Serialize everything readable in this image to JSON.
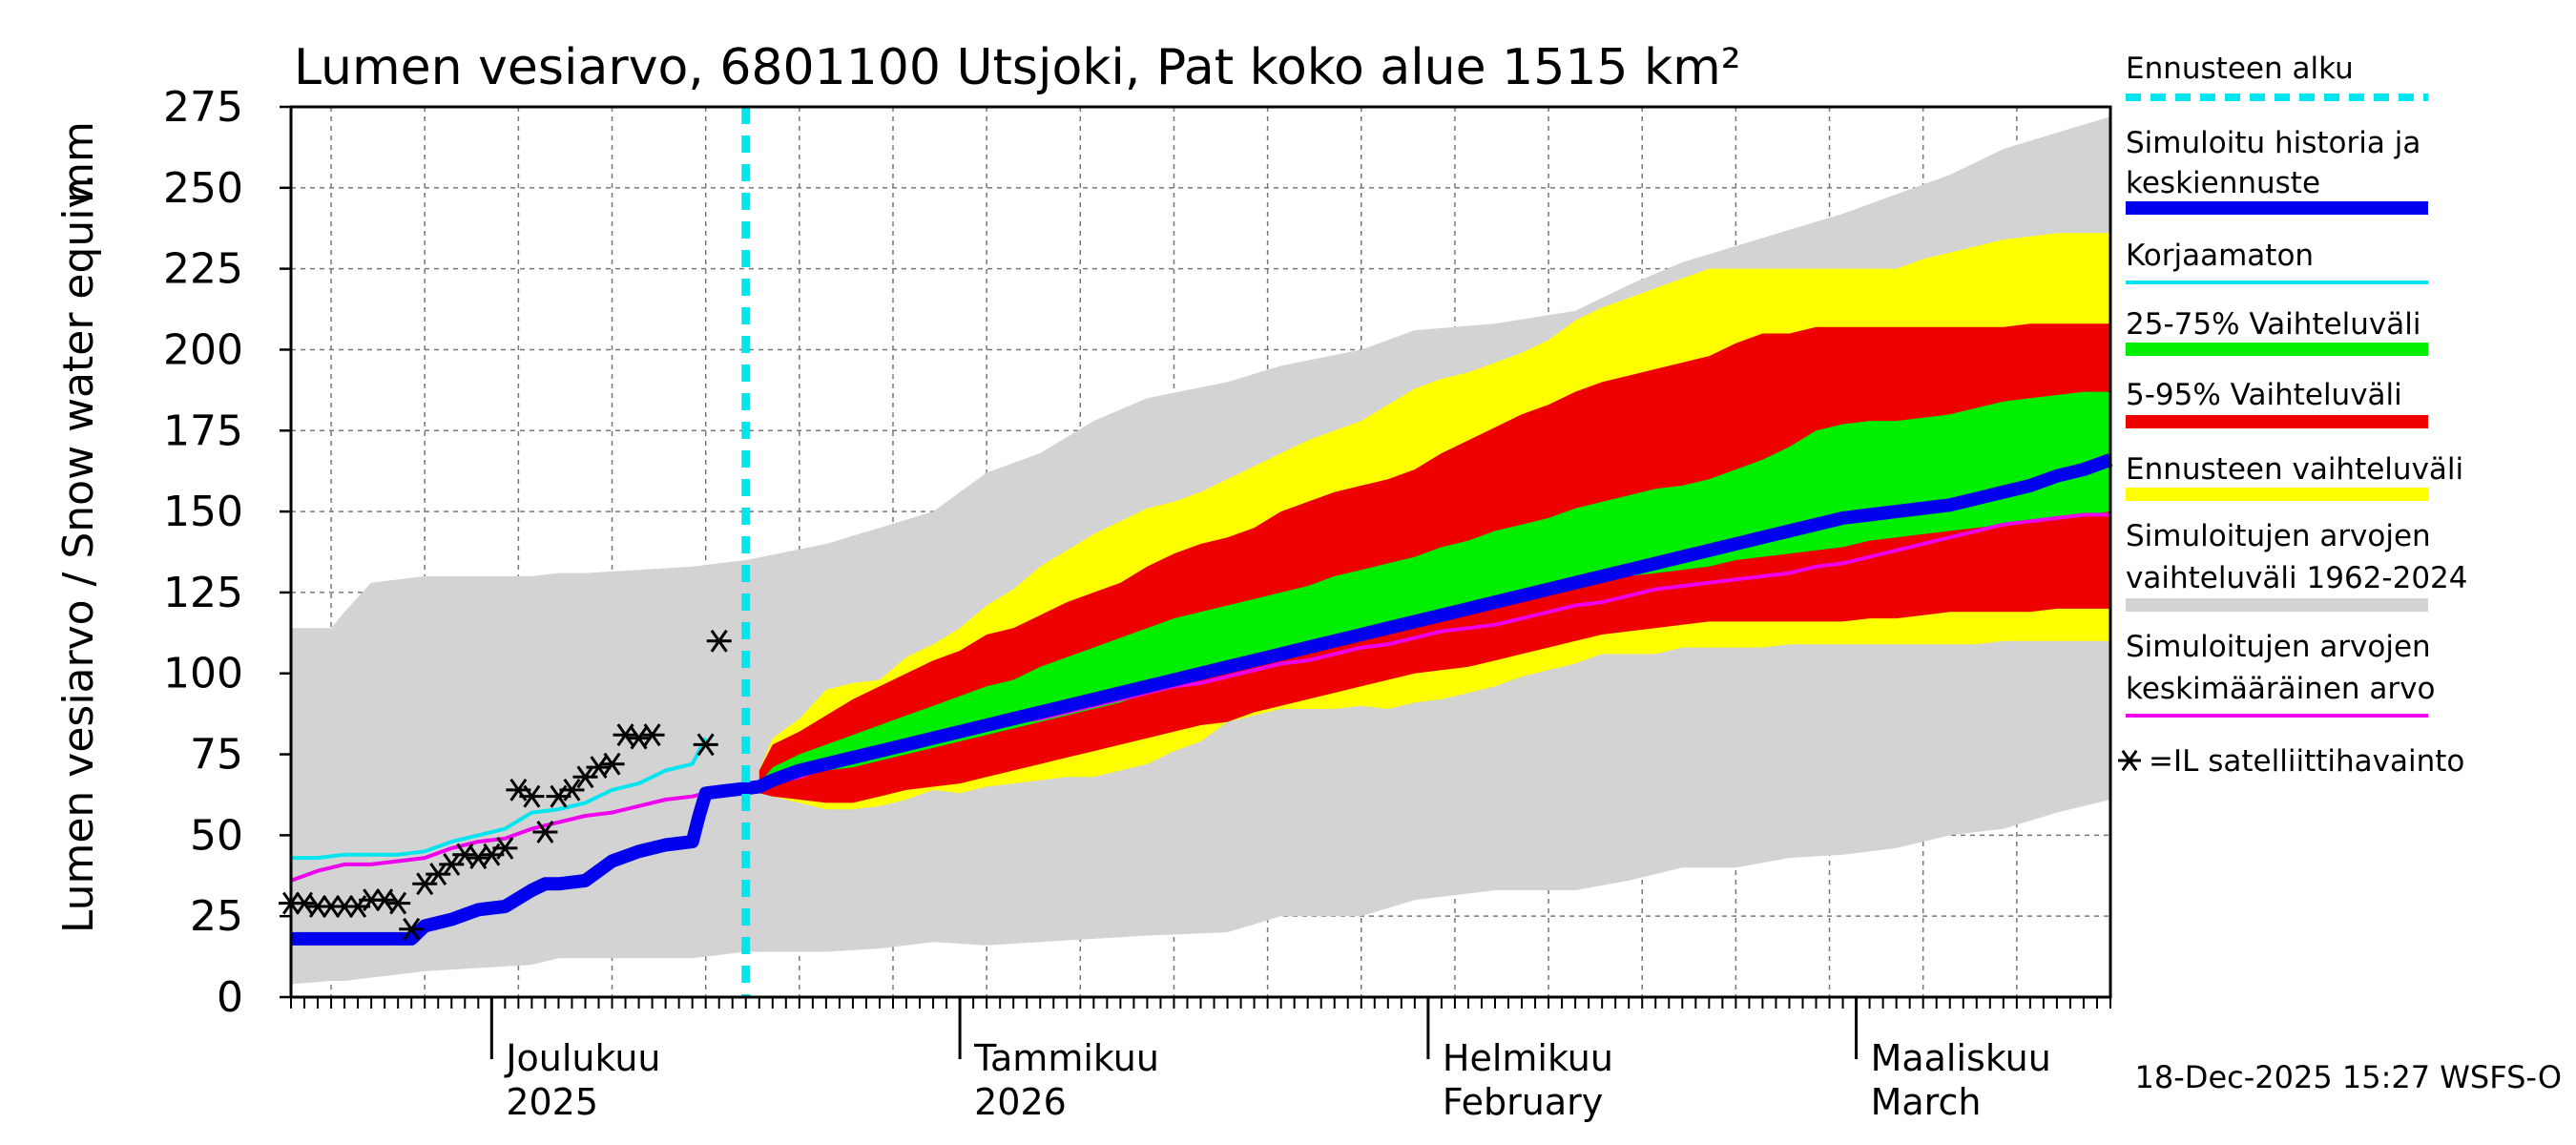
{
  "chart_data": {
    "type": "area",
    "title": "Lumen vesiarvo, 6801100 Utsjoki, Pat koko alue 1515 km²",
    "ylabel": "Lumen vesiarvo / Snow water equiv.",
    "yunit": "mm",
    "ylim": [
      0,
      275
    ],
    "yticks": [
      "0",
      "25",
      "50",
      "75",
      "100",
      "125",
      "150",
      "175",
      "200",
      "225",
      "250",
      "275"
    ],
    "xlim_days": [
      0,
      136
    ],
    "forecast_start_day": 34,
    "month_labels": [
      {
        "line1": "Joulukuu",
        "line2": "2025",
        "day": 15
      },
      {
        "line1": "Tammikuu",
        "line2": "2026",
        "day": 50
      },
      {
        "line1": "Helmikuu",
        "line2": "February",
        "day": 85
      },
      {
        "line1": "Maaliskuu",
        "line2": "March",
        "day": 117
      }
    ],
    "month_boundaries_days": [
      15,
      50,
      85,
      117
    ],
    "grid": true,
    "legend": [
      {
        "label": "Ennusteen alku",
        "color": "#00e5ee",
        "style": "dashed"
      },
      {
        "label": "Simuloitu historia ja",
        "label2": "keskiennuste",
        "color": "#0000ee",
        "style": "thick"
      },
      {
        "label": "Korjaamaton",
        "color": "#00e5ee",
        "style": "line"
      },
      {
        "label": "25-75% Vaihteluväli",
        "color": "#00ee00",
        "style": "thick"
      },
      {
        "label": "5-95% Vaihteluväli",
        "color": "#ee0000",
        "style": "thick"
      },
      {
        "label": "Ennusteen vaihteluväli",
        "color": "#ffff00",
        "style": "thick"
      },
      {
        "label": "Simuloitujen arvojen",
        "label2": "vaihteluväli 1962-2024",
        "color": "#d3d3d3",
        "style": "thick"
      },
      {
        "label": "Simuloitujen arvojen",
        "label2": "keskimääräinen arvo",
        "color": "#ee00ee",
        "style": "line"
      },
      {
        "label": "=IL satelliittihavainto",
        "color": "#000000",
        "style": "star"
      }
    ],
    "series": [
      {
        "name": "Simuloitujen arvojen vaihteluväli 1962-2024",
        "color": "#d3d3d3",
        "x": [
          0,
          3,
          4,
          6,
          10,
          14,
          18,
          20,
          22,
          26,
          30,
          34,
          40,
          44,
          48,
          52,
          56,
          60,
          64,
          70,
          74,
          80,
          84,
          90,
          96,
          100,
          104,
          108,
          112,
          116,
          120,
          124,
          128,
          132,
          136
        ],
        "upper": [
          114,
          114,
          119,
          128,
          130,
          130,
          130,
          131,
          131,
          132,
          133,
          135,
          140,
          145,
          150,
          162,
          168,
          178,
          185,
          190,
          195,
          200,
          206,
          208,
          212,
          220,
          227,
          232,
          237,
          242,
          248,
          254,
          262,
          267,
          272
        ],
        "lower": [
          4,
          5,
          5,
          6,
          8,
          9,
          10,
          12,
          12,
          12,
          12,
          14,
          14,
          15,
          17,
          16,
          17,
          18,
          19,
          20,
          25,
          25,
          30,
          33,
          33,
          36,
          40,
          40,
          43,
          44,
          46,
          50,
          52,
          57,
          61
        ]
      },
      {
        "name": "Ennusteen vaihteluväli",
        "color": "#ffff00",
        "x": [
          35,
          36,
          38,
          40,
          42,
          44,
          46,
          48,
          50,
          52,
          54,
          56,
          58,
          60,
          62,
          64,
          66,
          68,
          70,
          72,
          74,
          76,
          78,
          80,
          82,
          84,
          86,
          88,
          90,
          92,
          94,
          96,
          98,
          100,
          102,
          104,
          106,
          108,
          110,
          112,
          114,
          116,
          118,
          120,
          122,
          124,
          126,
          128,
          130,
          132,
          134,
          136
        ],
        "upper": [
          70,
          80,
          86,
          95,
          97,
          98,
          105,
          109,
          114,
          121,
          126,
          133,
          138,
          143,
          147,
          151,
          153,
          156,
          160,
          164,
          168,
          172,
          175,
          178,
          183,
          188,
          191,
          193,
          196,
          199,
          203,
          209,
          213,
          216,
          219,
          222,
          225,
          225,
          225,
          225,
          225,
          225,
          225,
          225,
          228,
          230,
          232,
          234,
          235,
          236,
          236,
          236
        ],
        "lower": [
          63,
          62,
          60,
          58,
          58,
          59,
          61,
          64,
          63,
          65,
          66,
          67,
          68,
          68,
          70,
          72,
          76,
          79,
          85,
          87,
          89,
          89,
          89,
          90,
          89,
          91,
          92,
          94,
          96,
          99,
          101,
          103,
          106,
          106,
          106,
          108,
          108,
          108,
          108,
          109,
          109,
          109,
          109,
          109,
          109,
          109,
          109,
          110,
          110,
          110,
          110,
          110
        ]
      },
      {
        "name": "5-95% Vaihteluväli",
        "color": "#ee0000",
        "x": [
          35,
          36,
          38,
          40,
          42,
          44,
          46,
          48,
          50,
          52,
          54,
          56,
          58,
          60,
          62,
          64,
          66,
          68,
          70,
          72,
          74,
          76,
          78,
          80,
          82,
          84,
          86,
          88,
          90,
          92,
          94,
          96,
          98,
          100,
          102,
          104,
          106,
          108,
          110,
          112,
          114,
          116,
          118,
          120,
          122,
          124,
          126,
          128,
          130,
          132,
          134,
          136
        ],
        "upper": [
          70,
          78,
          82,
          87,
          92,
          96,
          100,
          104,
          107,
          112,
          114,
          118,
          122,
          125,
          128,
          133,
          137,
          140,
          142,
          145,
          150,
          153,
          156,
          158,
          160,
          163,
          168,
          172,
          176,
          180,
          183,
          187,
          190,
          192,
          194,
          196,
          198,
          202,
          205,
          205,
          207,
          207,
          207,
          207,
          207,
          207,
          207,
          207,
          208,
          208,
          208,
          208
        ],
        "lower": [
          63,
          62,
          61,
          60,
          60,
          62,
          64,
          65,
          66,
          68,
          70,
          72,
          74,
          76,
          78,
          80,
          82,
          84,
          85,
          88,
          90,
          92,
          94,
          96,
          98,
          100,
          101,
          102,
          104,
          106,
          108,
          110,
          112,
          113,
          114,
          115,
          116,
          116,
          116,
          116,
          116,
          116,
          117,
          117,
          118,
          119,
          119,
          119,
          119,
          120,
          120,
          120
        ]
      },
      {
        "name": "25-75% Vaihteluväli",
        "color": "#00ee00",
        "x": [
          35,
          36,
          38,
          40,
          42,
          44,
          46,
          48,
          50,
          52,
          54,
          56,
          58,
          60,
          62,
          64,
          66,
          68,
          70,
          72,
          74,
          76,
          78,
          80,
          82,
          84,
          86,
          88,
          90,
          92,
          94,
          96,
          98,
          100,
          102,
          104,
          106,
          108,
          110,
          112,
          114,
          116,
          118,
          120,
          122,
          124,
          126,
          128,
          130,
          132,
          134,
          136
        ],
        "upper": [
          66,
          71,
          75,
          78,
          81,
          84,
          87,
          90,
          93,
          96,
          98,
          102,
          105,
          108,
          111,
          114,
          117,
          119,
          121,
          123,
          125,
          127,
          130,
          132,
          134,
          136,
          139,
          141,
          144,
          146,
          148,
          151,
          153,
          155,
          157,
          158,
          160,
          163,
          166,
          170,
          175,
          177,
          178,
          178,
          179,
          180,
          182,
          184,
          185,
          186,
          187,
          187
        ],
        "lower": [
          64,
          66,
          68,
          70,
          71,
          73,
          75,
          77,
          79,
          81,
          83,
          85,
          87,
          89,
          91,
          94,
          96,
          98,
          100,
          102,
          104,
          106,
          108,
          110,
          112,
          114,
          116,
          118,
          120,
          122,
          124,
          126,
          128,
          130,
          131,
          132,
          133,
          135,
          136,
          137,
          138,
          139,
          141,
          142,
          143,
          144,
          145,
          146,
          147,
          148,
          149,
          150
        ]
      },
      {
        "name": "Simuloitujen arvojen keskimääräinen arvo",
        "color": "#ee00ee",
        "x": [
          0,
          2,
          4,
          6,
          8,
          10,
          12,
          14,
          16,
          18,
          20,
          22,
          24,
          26,
          28,
          30,
          32,
          34,
          36,
          38,
          40,
          42,
          44,
          46,
          48,
          50,
          52,
          54,
          56,
          58,
          60,
          62,
          64,
          66,
          68,
          70,
          72,
          74,
          76,
          78,
          80,
          82,
          84,
          86,
          88,
          90,
          92,
          94,
          96,
          98,
          100,
          102,
          104,
          106,
          108,
          110,
          112,
          114,
          116,
          118,
          120,
          122,
          124,
          126,
          128,
          130,
          132,
          134,
          136
        ],
        "values": [
          36,
          39,
          41,
          41,
          42,
          43,
          46,
          48,
          49,
          52,
          54,
          56,
          57,
          59,
          61,
          62,
          64,
          65,
          66,
          68,
          71,
          73,
          76,
          78,
          80,
          82,
          84,
          85,
          86,
          88,
          90,
          92,
          94,
          96,
          97,
          99,
          101,
          103,
          104,
          106,
          108,
          109,
          111,
          113,
          114,
          115,
          117,
          119,
          121,
          122,
          124,
          126,
          127,
          128,
          129,
          130,
          131,
          133,
          134,
          136,
          138,
          140,
          142,
          144,
          146,
          147,
          148,
          149,
          149
        ]
      },
      {
        "name": "Korjaamaton",
        "color": "#00e5ee",
        "x": [
          0,
          2,
          4,
          6,
          8,
          10,
          12,
          14,
          16,
          18,
          20,
          22,
          24,
          26,
          28,
          30,
          31
        ],
        "values": [
          43,
          43,
          44,
          44,
          44,
          45,
          48,
          50,
          52,
          57,
          58,
          60,
          64,
          66,
          70,
          72,
          80
        ]
      },
      {
        "name": "Simuloitu historia ja keskiennuste",
        "color": "#0000ee",
        "x": [
          0,
          2,
          4,
          6,
          8,
          9,
          10,
          12,
          14,
          16,
          18,
          19,
          20,
          22,
          24,
          26,
          28,
          30,
          30.5,
          31,
          33,
          35,
          36,
          38,
          40,
          42,
          44,
          46,
          48,
          50,
          52,
          54,
          56,
          58,
          60,
          62,
          64,
          66,
          68,
          70,
          72,
          74,
          76,
          78,
          80,
          82,
          84,
          86,
          88,
          90,
          92,
          94,
          96,
          98,
          100,
          102,
          104,
          106,
          108,
          110,
          112,
          114,
          116,
          118,
          120,
          122,
          124,
          126,
          128,
          130,
          132,
          134,
          136
        ],
        "values": [
          18,
          18,
          18,
          18,
          18,
          18,
          22,
          24,
          27,
          28,
          33,
          35,
          35,
          36,
          42,
          45,
          47,
          48,
          56,
          63,
          64,
          65,
          67,
          70,
          72,
          74,
          76,
          78,
          80,
          82,
          84,
          86,
          88,
          90,
          92,
          94,
          96,
          98,
          100,
          102,
          104,
          106,
          108,
          110,
          112,
          114,
          116,
          118,
          120,
          122,
          124,
          126,
          128,
          130,
          132,
          134,
          136,
          138,
          140,
          142,
          144,
          146,
          148,
          149,
          150,
          151,
          152,
          154,
          156,
          158,
          161,
          163,
          166
        ]
      },
      {
        "name": "=IL satelliittihavainto",
        "color": "#000000",
        "type": "scatter",
        "x": [
          0,
          1,
          2,
          3,
          4,
          5,
          6,
          7,
          8,
          9,
          10,
          11,
          12,
          13,
          14,
          15,
          16,
          17,
          18,
          19,
          20,
          21,
          22,
          23,
          24,
          25,
          26,
          27,
          31,
          32
        ],
        "values": [
          29,
          29,
          28,
          28,
          28,
          28,
          30,
          30,
          29,
          21,
          35,
          38,
          41,
          44,
          43,
          44,
          46,
          64,
          62,
          51,
          62,
          64,
          68,
          71,
          72,
          81,
          80,
          81,
          78,
          110
        ]
      }
    ],
    "footer": "18-Dec-2025 15:27 WSFS-O"
  }
}
